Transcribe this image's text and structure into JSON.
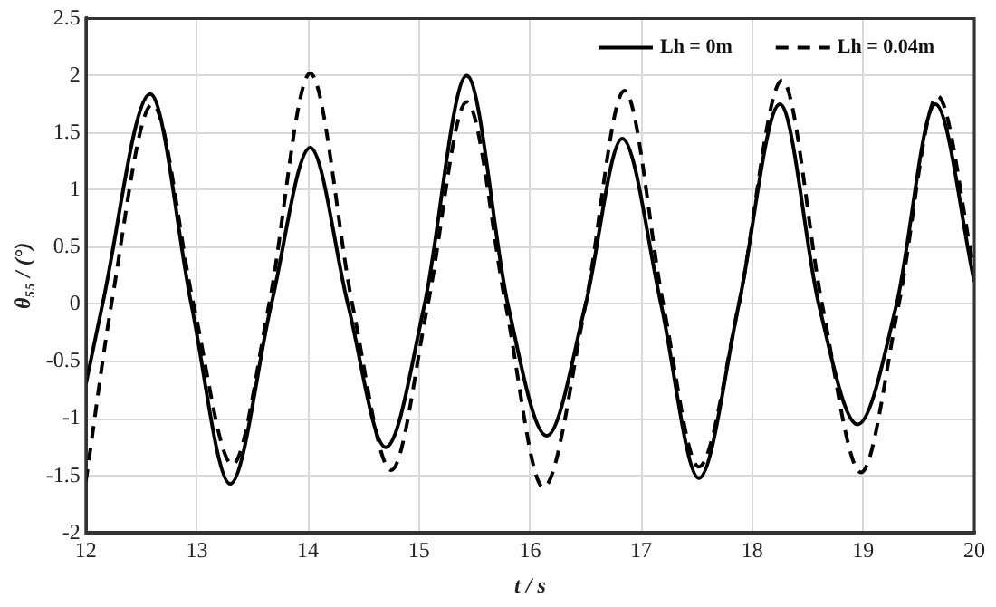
{
  "chart_data": {
    "type": "line",
    "xlabel": "t / s",
    "ylabel": "θ₅₅ / (°)",
    "xlim": [
      12,
      20
    ],
    "ylim": [
      -2,
      2.5
    ],
    "xticks": [
      12,
      13,
      14,
      15,
      16,
      17,
      18,
      19,
      20
    ],
    "yticks": [
      -2,
      -1.5,
      -1,
      -0.5,
      0,
      0.5,
      1,
      1.5,
      2,
      2.5
    ],
    "grid": true,
    "legend": "top right",
    "marker": "none",
    "series": [
      {
        "name": "Lh = 0m",
        "color": "#000000",
        "line_style": "solid",
        "x": [
          12,
          12.15,
          12.58,
          12.95,
          13.3,
          13.67,
          14.02,
          14.36,
          14.7,
          15.05,
          15.43,
          15.8,
          16.15,
          16.5,
          16.83,
          17.18,
          17.52,
          17.88,
          18.25,
          18.6,
          18.95,
          19.3,
          19.65,
          20
        ],
        "values": [
          -0.7,
          0,
          1.84,
          0,
          -1.57,
          0,
          1.37,
          0,
          -1.25,
          0,
          2.0,
          0,
          -1.15,
          0,
          1.45,
          0,
          -1.52,
          0,
          1.75,
          0,
          -1.05,
          0,
          1.75,
          0.2
        ]
      },
      {
        "name": "Lh = 0.04m",
        "color": "#000000",
        "line_style": "dashed",
        "x": [
          12,
          12.23,
          12.6,
          12.97,
          13.32,
          13.65,
          14.02,
          14.4,
          14.75,
          15.08,
          15.43,
          15.78,
          16.12,
          16.5,
          16.85,
          17.2,
          17.52,
          17.88,
          18.27,
          18.63,
          18.98,
          19.32,
          19.67,
          20
        ],
        "values": [
          -1.55,
          0,
          1.75,
          0,
          -1.4,
          0,
          2.02,
          0,
          -1.45,
          0,
          1.77,
          0,
          -1.6,
          0,
          1.87,
          0,
          -1.42,
          0,
          1.96,
          0,
          -1.47,
          0,
          1.82,
          0.3
        ]
      }
    ]
  }
}
